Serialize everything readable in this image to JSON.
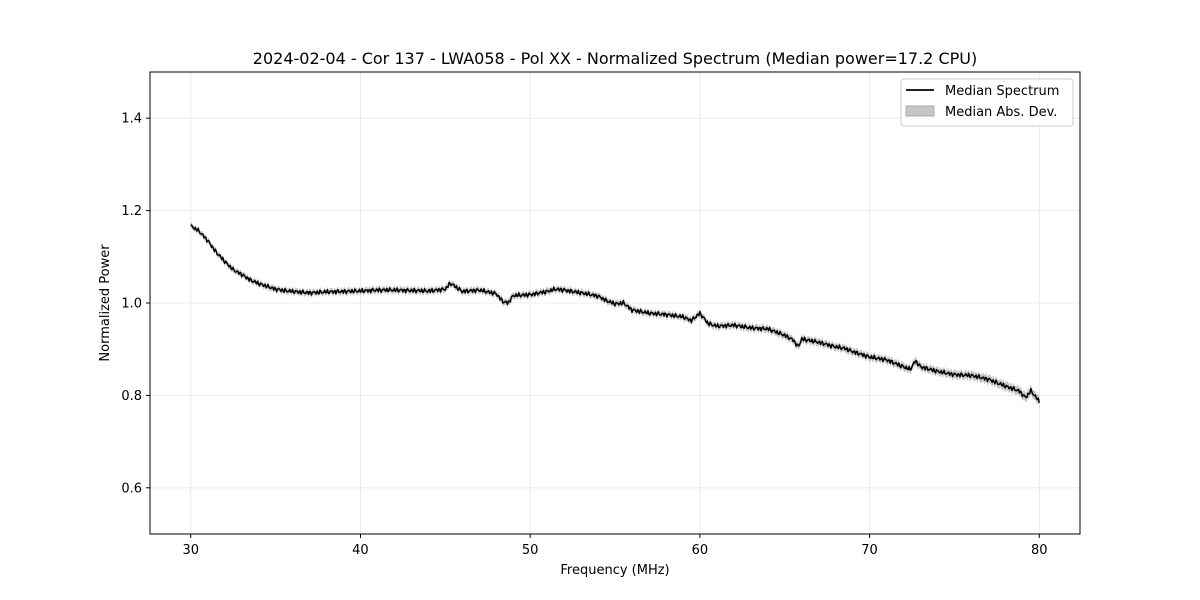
{
  "chart_data": {
    "type": "line",
    "title": "2024-02-04 - Cor 137 - LWA058 - Pol XX - Normalized Spectrum (Median power=17.2 CPU)",
    "xlabel": "Frequency (MHz)",
    "ylabel": "Normalized Power",
    "xlim": [
      27.6,
      82.4
    ],
    "ylim": [
      0.5,
      1.5
    ],
    "x_ticks": [
      30,
      40,
      50,
      60,
      70,
      80
    ],
    "y_ticks": [
      0.6,
      0.8,
      1.0,
      1.2,
      1.4
    ],
    "x_tick_labels": [
      "30",
      "40",
      "50",
      "60",
      "70",
      "80"
    ],
    "y_tick_labels": [
      "0.6",
      "0.8",
      "1.0",
      "1.2",
      "1.4"
    ],
    "grid": true,
    "legend_position": "top-right",
    "series": [
      {
        "name": "Median Spectrum",
        "kind": "line",
        "color": "#000000",
        "x": [
          30.0,
          30.5,
          31.0,
          31.5,
          32.0,
          32.5,
          33.0,
          33.5,
          34.0,
          34.5,
          35.0,
          35.5,
          36.0,
          37.0,
          38.0,
          39.0,
          40.0,
          41.0,
          42.0,
          43.0,
          44.0,
          45.0,
          45.3,
          46.0,
          47.0,
          48.0,
          48.4,
          48.7,
          49.0,
          50.0,
          51.0,
          51.5,
          52.0,
          53.0,
          54.0,
          54.5,
          55.0,
          55.5,
          56.0,
          57.0,
          58.0,
          59.0,
          59.5,
          60.0,
          60.5,
          61.0,
          62.0,
          63.0,
          64.0,
          65.0,
          65.5,
          65.8,
          66.0,
          67.0,
          68.0,
          68.5,
          69.0,
          70.0,
          71.0,
          72.0,
          72.4,
          72.7,
          73.0,
          74.0,
          75.0,
          76.0,
          77.0,
          78.0,
          78.8,
          79.2,
          79.5,
          80.0
        ],
        "y": [
          1.167,
          1.155,
          1.135,
          1.11,
          1.09,
          1.072,
          1.062,
          1.05,
          1.042,
          1.036,
          1.03,
          1.027,
          1.025,
          1.022,
          1.024,
          1.025,
          1.026,
          1.028,
          1.028,
          1.027,
          1.026,
          1.03,
          1.043,
          1.025,
          1.028,
          1.02,
          1.003,
          1.0,
          1.016,
          1.018,
          1.025,
          1.03,
          1.028,
          1.022,
          1.015,
          1.005,
          0.998,
          1.0,
          0.985,
          0.978,
          0.975,
          0.97,
          0.962,
          0.978,
          0.955,
          0.95,
          0.952,
          0.946,
          0.944,
          0.93,
          0.92,
          0.905,
          0.922,
          0.915,
          0.905,
          0.902,
          0.895,
          0.883,
          0.877,
          0.862,
          0.856,
          0.875,
          0.862,
          0.852,
          0.845,
          0.843,
          0.835,
          0.82,
          0.81,
          0.795,
          0.81,
          0.787
        ]
      },
      {
        "name": "Median Abs. Dev.",
        "kind": "band",
        "color": "#c6c6c6",
        "x": [
          30,
          40,
          50,
          55,
          60,
          65,
          70,
          75,
          80
        ],
        "halfwidth": [
          0.006,
          0.007,
          0.007,
          0.007,
          0.007,
          0.008,
          0.008,
          0.009,
          0.01
        ]
      }
    ]
  }
}
